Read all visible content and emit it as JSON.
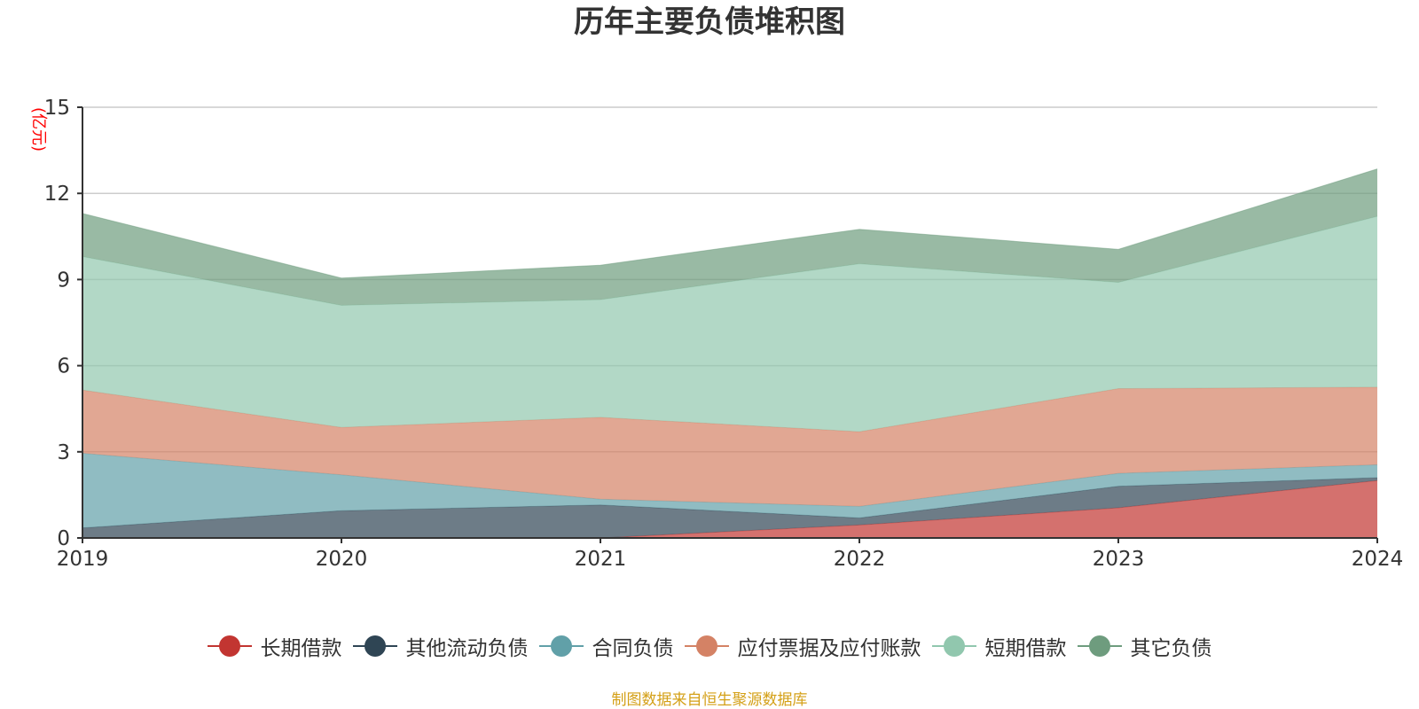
{
  "chart_data": {
    "type": "area",
    "stacked": true,
    "title": "历年主要负债堆积图",
    "ylabel": "(亿元)",
    "ylabel_color": "#ff0000",
    "x": [
      "2019",
      "2020",
      "2021",
      "2022",
      "2023",
      "2024"
    ],
    "ylim": [
      0,
      15
    ],
    "yticks": [
      "0",
      "3",
      "6",
      "9",
      "12",
      "15"
    ],
    "grid": true,
    "legend_position": "bottom-center",
    "series": [
      {
        "name": "长期借款",
        "color": "#c23531",
        "values": [
          0,
          0,
          0,
          0.45,
          1.05,
          2.0
        ]
      },
      {
        "name": "其他流动负债",
        "color": "#2f4554",
        "values": [
          0.35,
          0.95,
          1.15,
          0.25,
          0.75,
          0.1
        ]
      },
      {
        "name": "合同负债",
        "color": "#61a0a8",
        "values": [
          2.6,
          1.25,
          0.2,
          0.4,
          0.45,
          0.45
        ]
      },
      {
        "name": "应付票据及应付账款",
        "color": "#d48265",
        "values": [
          2.2,
          1.65,
          2.85,
          2.6,
          2.95,
          2.7
        ]
      },
      {
        "name": "短期借款",
        "color": "#91c7ae",
        "values": [
          4.65,
          4.25,
          4.1,
          5.85,
          3.7,
          5.95
        ]
      },
      {
        "name": "其它负债",
        "color": "#6e9c7e",
        "values": [
          1.5,
          0.95,
          1.2,
          1.2,
          1.15,
          1.65
        ]
      }
    ]
  },
  "source_note": "制图数据来自恒生聚源数据库"
}
